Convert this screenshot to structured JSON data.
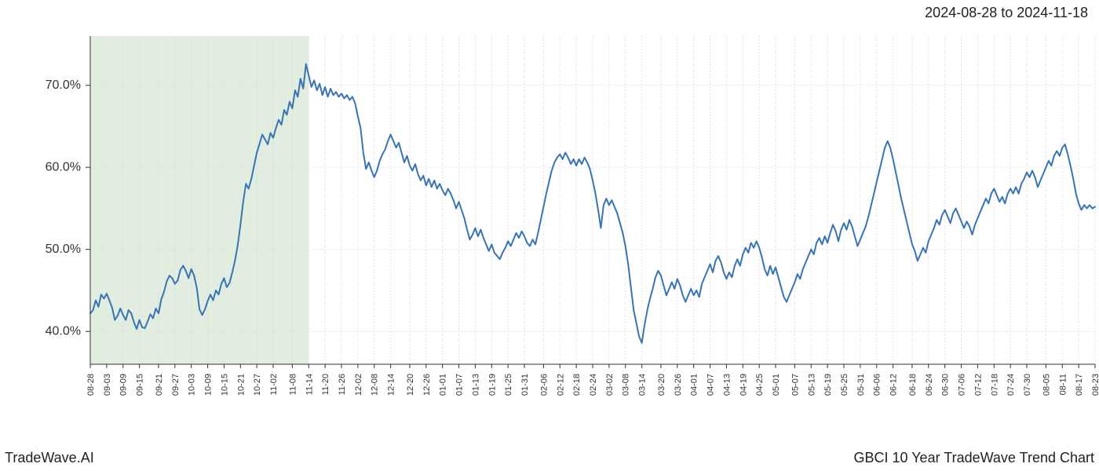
{
  "header": {
    "date_range": "2024-08-28 to 2024-11-18"
  },
  "footer": {
    "brand": "TradeWave.AI",
    "chart_label": "GBCI 10 Year TradeWave Trend Chart"
  },
  "chart": {
    "type": "line",
    "background_color": "#ffffff",
    "grid_color": "#d9d9d9",
    "spine_color": "#333333",
    "tick_color": "#333333",
    "tick_label_color": "#333333",
    "yaxis": {
      "lim": [
        36,
        76
      ],
      "tick_values": [
        40,
        50,
        60,
        70
      ],
      "tick_labels": [
        "40.0%",
        "50.0%",
        "60.0%",
        "70.0%"
      ],
      "label_fontsize": 16
    },
    "xaxis": {
      "tick_labels": [
        "08-28",
        "09-03",
        "09-09",
        "09-15",
        "09-21",
        "09-27",
        "10-03",
        "10-09",
        "10-15",
        "10-21",
        "10-27",
        "11-02",
        "11-08",
        "11-14",
        "11-20",
        "11-26",
        "12-02",
        "12-08",
        "12-14",
        "12-20",
        "12-26",
        "01-01",
        "01-07",
        "01-13",
        "01-19",
        "01-25",
        "01-31",
        "02-06",
        "02-12",
        "02-18",
        "02-24",
        "03-02",
        "03-08",
        "03-14",
        "03-20",
        "03-26",
        "04-01",
        "04-07",
        "04-13",
        "04-19",
        "04-25",
        "05-01",
        "05-07",
        "05-13",
        "05-19",
        "05-25",
        "05-31",
        "06-06",
        "06-12",
        "06-18",
        "06-24",
        "06-30",
        "07-06",
        "07-12",
        "07-18",
        "07-24",
        "07-30",
        "08-05",
        "08-11",
        "08-17",
        "08-23"
      ],
      "label_fontsize": 11,
      "rotation": 90
    },
    "highlight_band": {
      "from_index": 0,
      "to_index": 13,
      "fill_color": "#c9dfc3",
      "fill_opacity": 0.55
    },
    "series": {
      "color": "#3874b5",
      "line_width": 2.0,
      "y": [
        42.2,
        42.6,
        43.8,
        43.0,
        44.5,
        44.0,
        44.6,
        43.8,
        42.9,
        41.4,
        41.9,
        42.8,
        42.0,
        41.4,
        42.6,
        42.2,
        41.1,
        40.3,
        41.4,
        40.5,
        40.4,
        41.2,
        42.1,
        41.6,
        42.8,
        42.2,
        43.9,
        44.8,
        46.1,
        46.8,
        46.5,
        45.8,
        46.2,
        47.5,
        48.0,
        47.4,
        46.5,
        47.6,
        46.8,
        45.3,
        42.7,
        42.0,
        42.7,
        43.7,
        44.5,
        43.8,
        45.0,
        44.5,
        45.8,
        46.5,
        45.4,
        45.9,
        47.2,
        48.6,
        50.5,
        53.0,
        55.8,
        58.0,
        57.4,
        58.6,
        60.2,
        61.8,
        62.9,
        64.0,
        63.4,
        62.8,
        64.2,
        63.6,
        64.8,
        65.8,
        65.2,
        67.0,
        66.4,
        68.0,
        67.2,
        69.4,
        68.6,
        70.8,
        69.6,
        72.6,
        71.2,
        69.8,
        70.6,
        69.4,
        70.2,
        68.8,
        69.8,
        68.6,
        69.6,
        68.8,
        69.2,
        68.6,
        69.0,
        68.4,
        68.8,
        68.2,
        68.6,
        67.8,
        66.2,
        64.8,
        61.8,
        59.8,
        60.6,
        59.6,
        58.8,
        59.6,
        60.8,
        61.6,
        62.2,
        63.2,
        64.0,
        63.2,
        62.4,
        63.0,
        61.8,
        60.6,
        61.4,
        60.2,
        59.6,
        60.4,
        59.2,
        58.4,
        59.0,
        57.8,
        58.6,
        57.6,
        58.4,
        57.4,
        58.0,
        57.2,
        56.6,
        57.4,
        56.8,
        56.0,
        55.0,
        55.8,
        54.8,
        53.8,
        52.4,
        51.2,
        51.8,
        52.6,
        51.6,
        52.4,
        51.4,
        50.6,
        49.8,
        50.6,
        49.6,
        49.2,
        48.8,
        49.6,
        50.2,
        51.0,
        50.4,
        51.2,
        52.0,
        51.4,
        52.2,
        51.6,
        50.8,
        50.4,
        51.2,
        50.6,
        52.0,
        53.6,
        55.2,
        56.8,
        58.2,
        59.6,
        60.6,
        61.2,
        61.6,
        61.0,
        61.8,
        61.2,
        60.4,
        61.0,
        60.2,
        61.0,
        60.4,
        61.2,
        60.6,
        59.8,
        58.4,
        56.8,
        54.8,
        52.6,
        55.4,
        56.2,
        55.4,
        56.0,
        55.2,
        54.4,
        53.2,
        52.0,
        50.4,
        48.2,
        45.4,
        42.6,
        41.0,
        39.4,
        38.6,
        40.8,
        42.6,
        44.0,
        45.2,
        46.6,
        47.4,
        46.8,
        45.6,
        44.4,
        45.2,
        46.0,
        45.2,
        46.4,
        45.6,
        44.4,
        43.6,
        44.4,
        45.2,
        44.4,
        45.0,
        44.2,
        45.8,
        46.6,
        47.4,
        48.2,
        47.2,
        48.6,
        49.2,
        48.4,
        47.2,
        46.4,
        47.2,
        46.6,
        48.0,
        48.8,
        48.0,
        49.4,
        50.2,
        49.6,
        50.8,
        50.2,
        51.0,
        50.2,
        49.0,
        47.6,
        46.8,
        48.0,
        47.0,
        47.8,
        46.6,
        45.4,
        44.2,
        43.6,
        44.4,
        45.2,
        46.0,
        47.0,
        46.4,
        47.6,
        48.4,
        49.2,
        50.0,
        49.4,
        50.8,
        51.4,
        50.6,
        51.6,
        50.8,
        52.0,
        53.0,
        52.2,
        51.0,
        52.4,
        53.2,
        52.4,
        53.6,
        52.8,
        51.6,
        50.4,
        51.2,
        52.0,
        52.8,
        54.0,
        55.4,
        56.8,
        58.2,
        59.6,
        61.0,
        62.4,
        63.2,
        62.4,
        61.0,
        59.4,
        57.8,
        56.2,
        54.8,
        53.4,
        52.0,
        50.6,
        49.8,
        48.6,
        49.4,
        50.2,
        49.6,
        51.0,
        51.8,
        52.6,
        53.6,
        53.0,
        54.2,
        54.8,
        54.0,
        53.2,
        54.4,
        55.0,
        54.2,
        53.4,
        52.6,
        53.4,
        52.8,
        51.8,
        53.0,
        53.8,
        54.6,
        55.4,
        56.2,
        55.6,
        56.8,
        57.4,
        56.6,
        55.8,
        56.4,
        55.6,
        56.8,
        57.4,
        56.8,
        57.6,
        56.8,
        58.0,
        58.6,
        59.4,
        58.8,
        59.6,
        58.8,
        57.6,
        58.4,
        59.2,
        60.0,
        60.8,
        60.2,
        61.4,
        62.0,
        61.4,
        62.4,
        62.8,
        61.6,
        60.2,
        58.6,
        56.8,
        55.6,
        54.8,
        55.4,
        55.0,
        55.4,
        55.0,
        55.2
      ]
    }
  }
}
